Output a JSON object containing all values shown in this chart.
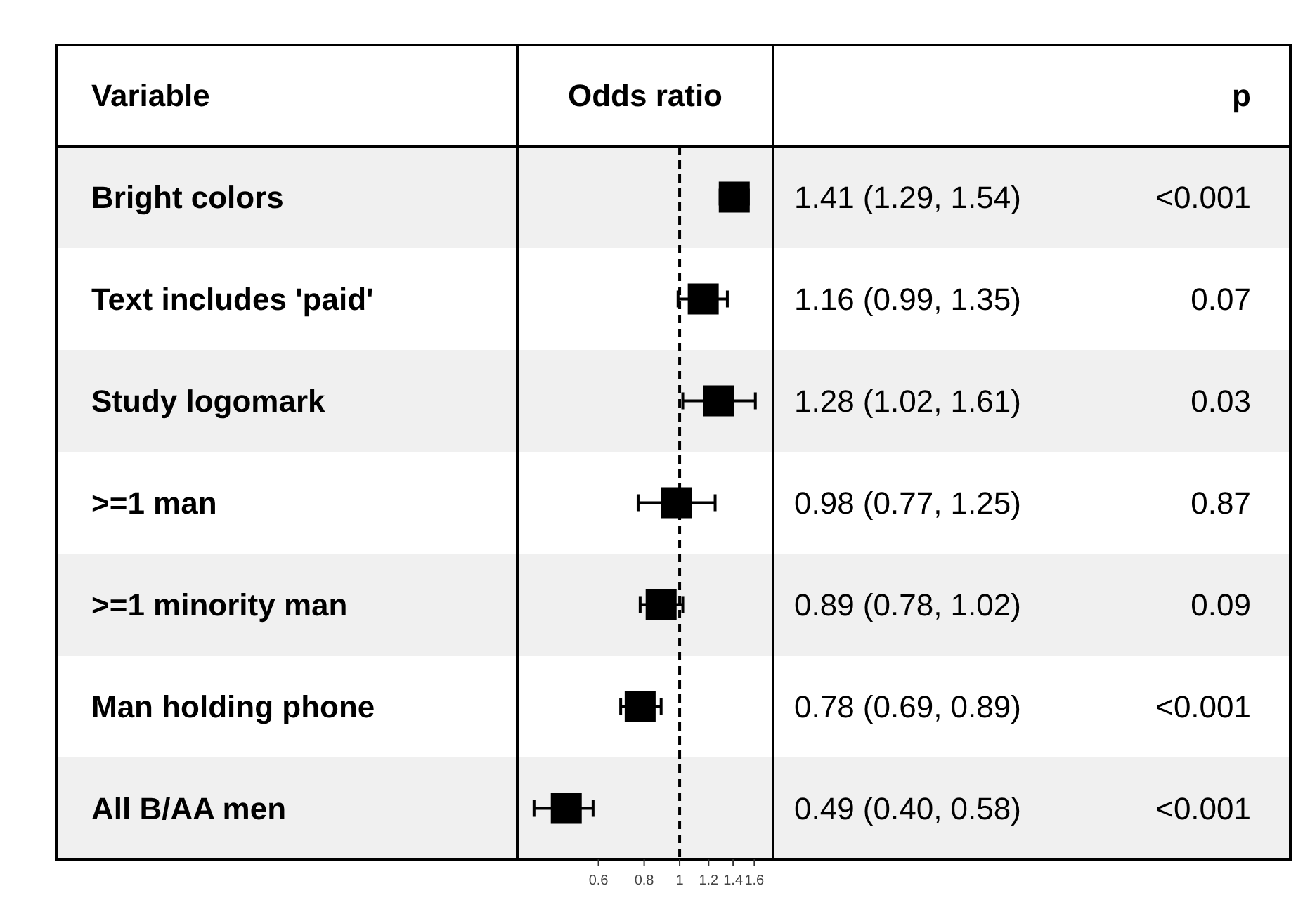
{
  "chart_data": {
    "type": "scatter",
    "orientation": "horizontal",
    "xlabel": "Odds ratio",
    "ylabel": "Variable",
    "categories": [
      "Bright colors",
      "Text includes 'paid'",
      "Study logomark",
      ">=1 man",
      ">=1 minority man",
      "Man holding phone",
      "All B/AA men"
    ],
    "values": [
      1.41,
      1.16,
      1.28,
      0.98,
      0.89,
      0.78,
      0.49
    ],
    "errors": [
      [
        1.29,
        1.54
      ],
      [
        0.99,
        1.35
      ],
      [
        1.02,
        1.61
      ],
      [
        0.77,
        1.25
      ],
      [
        0.78,
        1.02
      ],
      [
        0.69,
        0.89
      ],
      [
        0.4,
        0.58
      ]
    ],
    "value_labels": [
      "1.41 (1.29, 1.54)",
      "1.16 (0.99, 1.35)",
      "1.28 (1.02, 1.61)",
      "0.98 (0.77, 1.25)",
      "0.89 (0.78, 1.02)",
      "0.78 (0.69, 0.89)",
      "0.49 (0.40, 0.58)"
    ],
    "color": "#000000",
    "marker": "square",
    "log": "x",
    "xlim": [
      0.36,
      1.8
    ],
    "xticks": [
      0.6,
      0.8,
      1,
      1.2,
      1.4,
      1.6
    ],
    "ref_lines": [
      {
        "axis": "x",
        "value": 1,
        "line_style": "dashed"
      }
    ],
    "annotations": [
      "p",
      "<0.001",
      "0.07",
      "0.03",
      "0.87",
      "0.09",
      "<0.001",
      "<0.001"
    ]
  }
}
